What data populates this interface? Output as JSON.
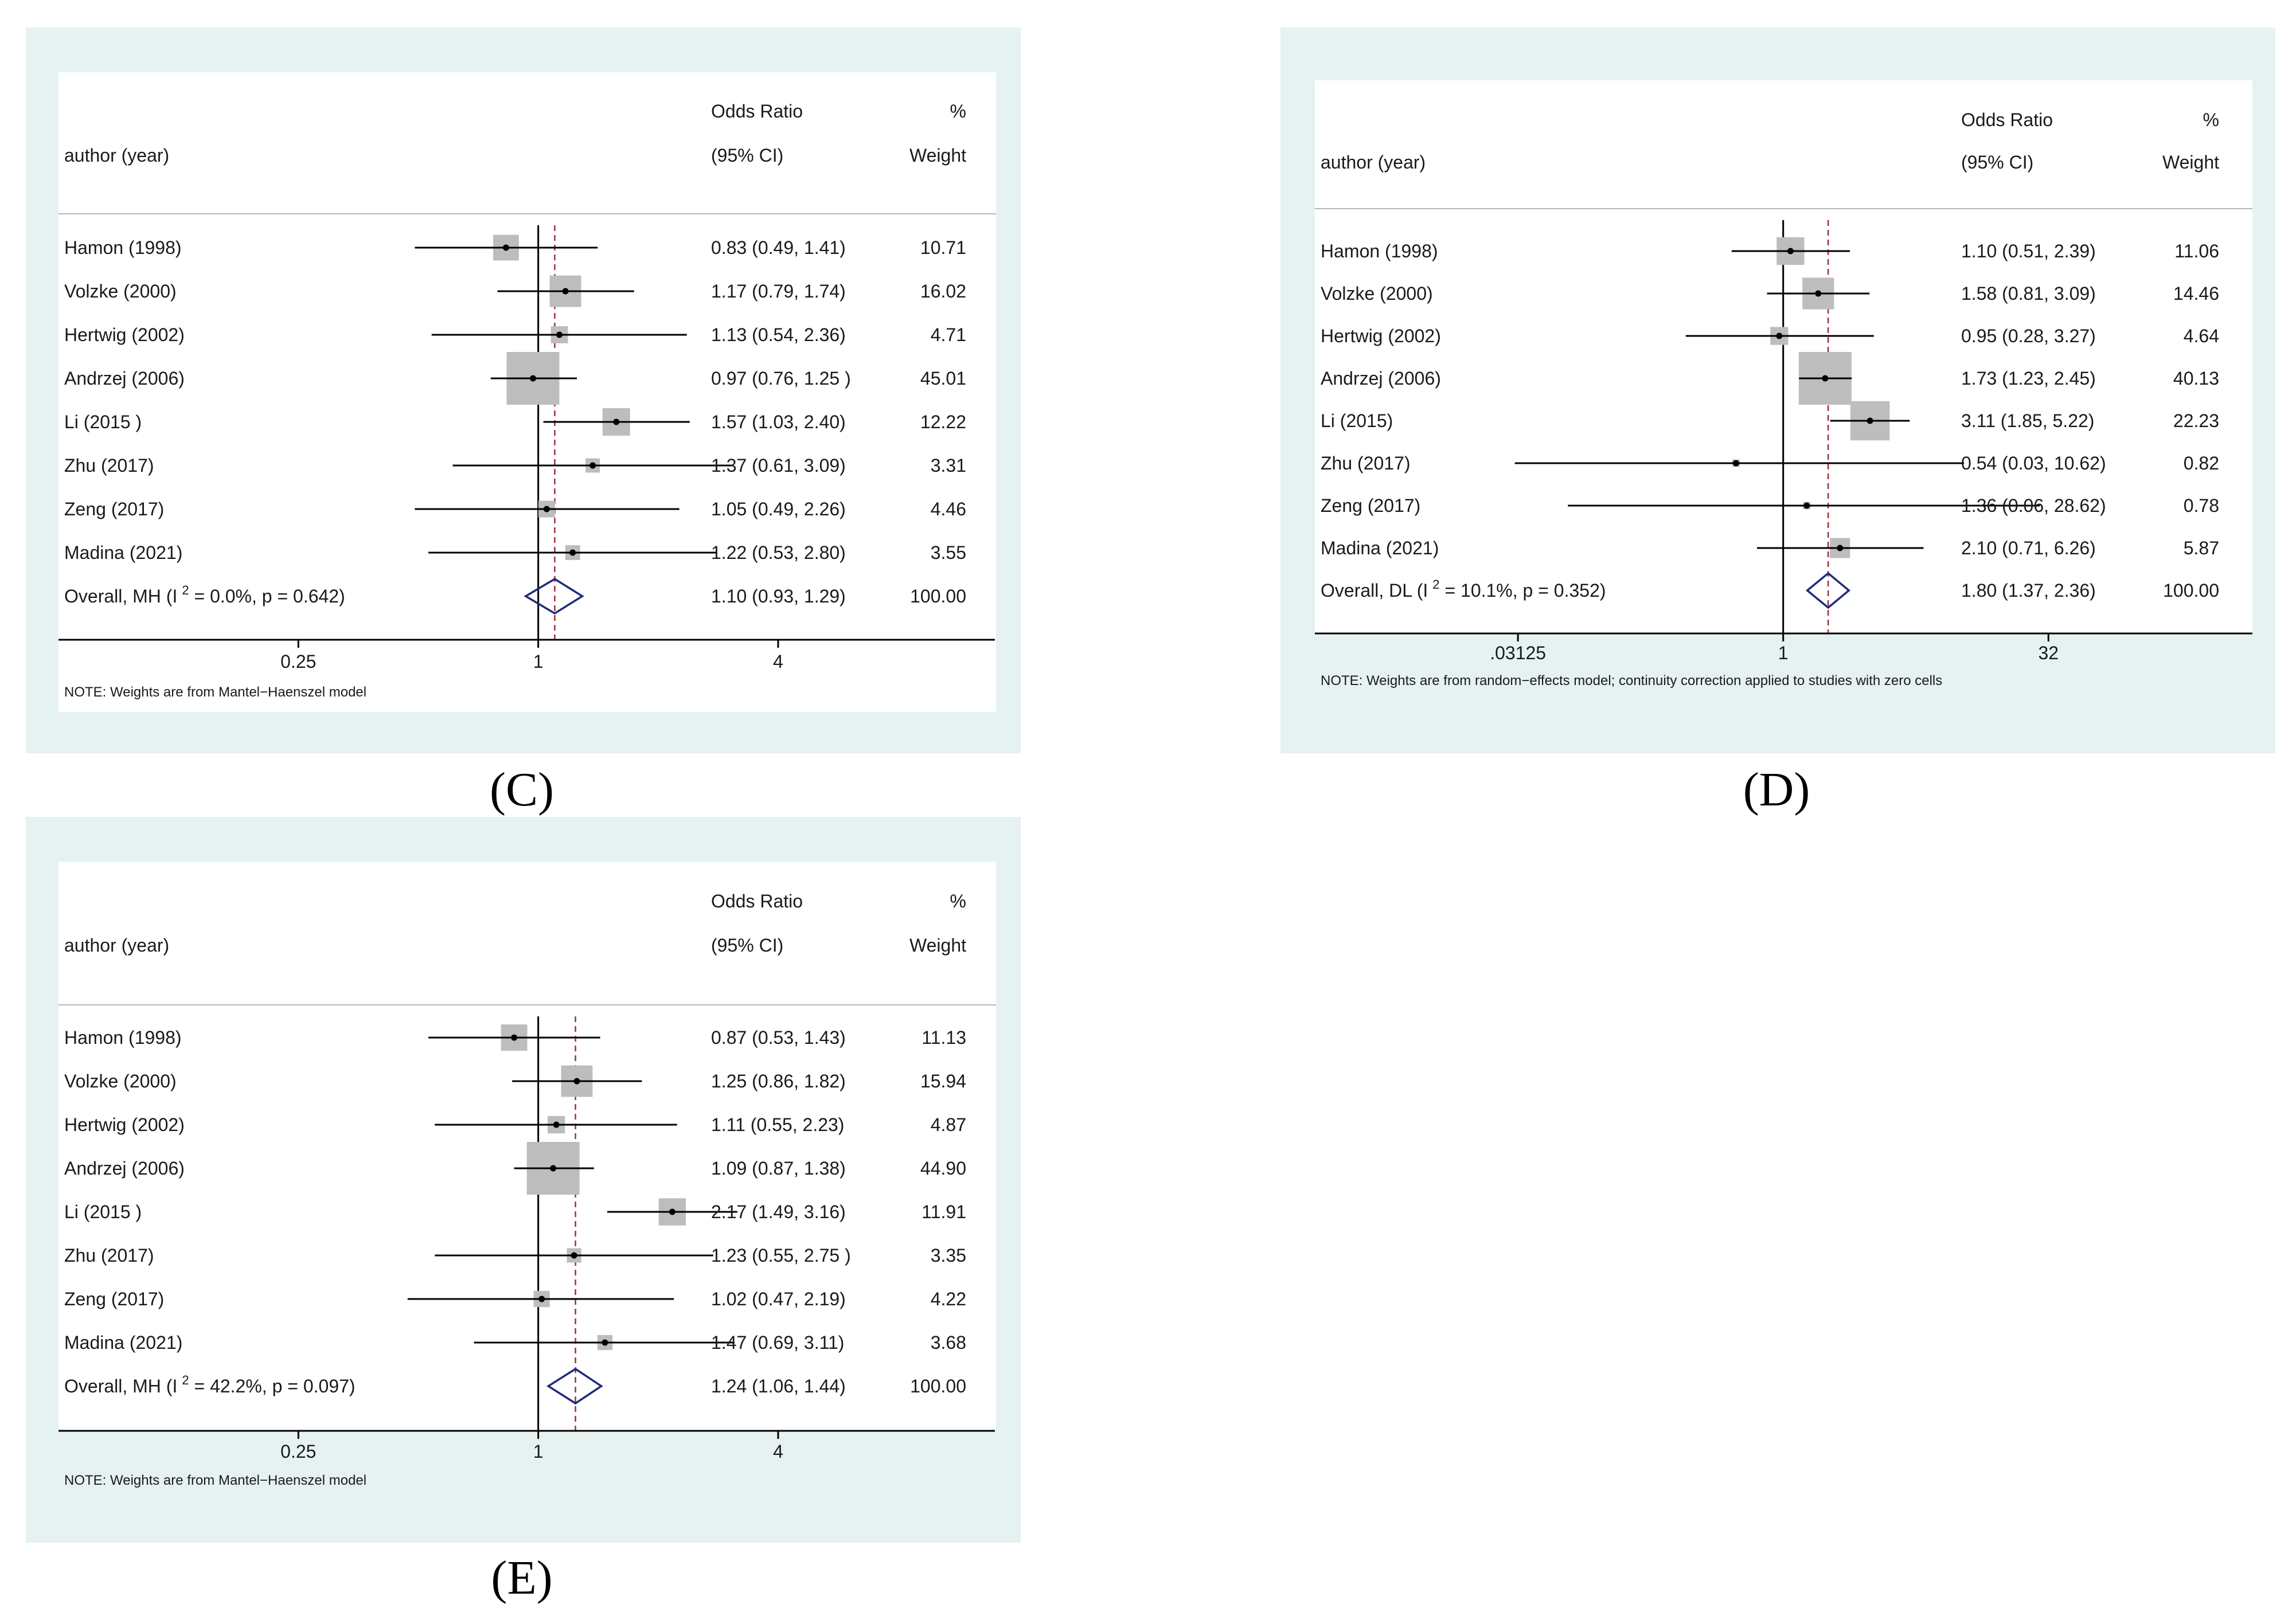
{
  "colors": {
    "panel_bg": "#e6f1f2",
    "plot_bg": "#ffffff",
    "box": "#bdbdbd",
    "diamond": "#1f2a7a",
    "ref_line": "#9e2f3a",
    "line": "#000000"
  },
  "chart_data": [
    {
      "type": "forest",
      "panel_label": "(C)",
      "header": {
        "col1": "author (year)",
        "or_top": "Odds Ratio",
        "or_bottom": "(95% CI)",
        "w_top": "%",
        "w_bottom": "Weight"
      },
      "x_scale": "log2",
      "xlim": [
        0.0625,
        14
      ],
      "ticks": [
        {
          "value": 0.25,
          "label": "0.25"
        },
        {
          "value": 1,
          "label": "1"
        },
        {
          "value": 4,
          "label": "4"
        }
      ],
      "pooled_line": 1.1,
      "studies": [
        {
          "name": "Hamon  (1998)",
          "or": 0.83,
          "lo": 0.49,
          "hi": 1.41,
          "ci_text": "0.83 (0.49, 1.41)",
          "weight": 10.71,
          "weight_text": "10.71"
        },
        {
          "name": "Volzke (2000)",
          "or": 1.17,
          "lo": 0.79,
          "hi": 1.74,
          "ci_text": "1.17 (0.79, 1.74)",
          "weight": 16.02,
          "weight_text": "16.02"
        },
        {
          "name": "Hertwig (2002)",
          "or": 1.13,
          "lo": 0.54,
          "hi": 2.36,
          "ci_text": "1.13 (0.54, 2.36)",
          "weight": 4.71,
          "weight_text": "4.71"
        },
        {
          "name": "Andrzej (2006)",
          "or": 0.97,
          "lo": 0.76,
          "hi": 1.25,
          "ci_text": "0.97 (0.76, 1.25 )",
          "weight": 45.01,
          "weight_text": "45.01"
        },
        {
          "name": "Li (2015 )",
          "or": 1.57,
          "lo": 1.03,
          "hi": 2.4,
          "ci_text": "1.57 (1.03, 2.40)",
          "weight": 12.22,
          "weight_text": "12.22"
        },
        {
          "name": "Zhu (2017)",
          "or": 1.37,
          "lo": 0.61,
          "hi": 3.09,
          "ci_text": "1.37 (0.61, 3.09)",
          "weight": 3.31,
          "weight_text": "3.31"
        },
        {
          "name": "Zeng (2017)",
          "or": 1.05,
          "lo": 0.49,
          "hi": 2.26,
          "ci_text": "1.05 (0.49, 2.26)",
          "weight": 4.46,
          "weight_text": "4.46"
        },
        {
          "name": "Madina (2021)",
          "or": 1.22,
          "lo": 0.53,
          "hi": 2.8,
          "ci_text": "1.22 (0.53, 2.80)",
          "weight": 3.55,
          "weight_text": "3.55"
        }
      ],
      "overall": {
        "label": "Overall, MH (I",
        "sup": "2",
        "stat": " = 0.0%, p = 0.642)",
        "or": 1.1,
        "lo": 0.93,
        "hi": 1.29,
        "ci_text": "1.10 (0.93, 1.29)",
        "weight_text": "100.00"
      },
      "note": "NOTE: Weights are from Mantel−Haenszel model"
    },
    {
      "type": "forest",
      "panel_label": "(D)",
      "header": {
        "col1": "author (year)",
        "or_top": "Odds Ratio",
        "or_bottom": "(95% CI)",
        "w_top": "%",
        "w_bottom": "Weight"
      },
      "x_scale": "log2",
      "xlim": [
        0.0022,
        460
      ],
      "ticks": [
        {
          "value": 0.03125,
          "label": ".03125"
        },
        {
          "value": 1,
          "label": "1"
        },
        {
          "value": 32,
          "label": "32"
        }
      ],
      "pooled_line": 1.8,
      "studies": [
        {
          "name": "Hamon  (1998)",
          "or": 1.1,
          "lo": 0.51,
          "hi": 2.39,
          "ci_text": "1.10 (0.51, 2.39)",
          "weight": 11.06,
          "weight_text": "11.06"
        },
        {
          "name": "Volzke (2000)",
          "or": 1.58,
          "lo": 0.81,
          "hi": 3.09,
          "ci_text": "1.58 (0.81, 3.09)",
          "weight": 14.46,
          "weight_text": "14.46"
        },
        {
          "name": "Hertwig (2002)",
          "or": 0.95,
          "lo": 0.28,
          "hi": 3.27,
          "ci_text": "0.95 (0.28, 3.27)",
          "weight": 4.64,
          "weight_text": "4.64"
        },
        {
          "name": "Andrzej (2006)",
          "or": 1.73,
          "lo": 1.23,
          "hi": 2.45,
          "ci_text": "1.73 (1.23, 2.45)",
          "weight": 40.13,
          "weight_text": "40.13"
        },
        {
          "name": "Li (2015)",
          "or": 3.11,
          "lo": 1.85,
          "hi": 5.22,
          "ci_text": "3.11 (1.85, 5.22)",
          "weight": 22.23,
          "weight_text": "22.23"
        },
        {
          "name": "Zhu (2017)",
          "or": 0.54,
          "lo": 0.03,
          "hi": 10.62,
          "ci_text": "0.54 (0.03, 10.62)",
          "weight": 0.82,
          "weight_text": "0.82"
        },
        {
          "name": "Zeng (2017)",
          "or": 1.36,
          "lo": 0.06,
          "hi": 28.62,
          "ci_text": "1.36 (0.06, 28.62)",
          "weight": 0.78,
          "weight_text": "0.78"
        },
        {
          "name": "Madina (2021)",
          "or": 2.1,
          "lo": 0.71,
          "hi": 6.26,
          "ci_text": "2.10 (0.71, 6.26)",
          "weight": 5.87,
          "weight_text": "5.87"
        }
      ],
      "overall": {
        "label": "Overall, DL (I",
        "sup": "2",
        "stat": " = 10.1%, p = 0.352)",
        "or": 1.8,
        "lo": 1.37,
        "hi": 2.36,
        "ci_text": "1.80 (1.37, 2.36)",
        "weight_text": "100.00"
      },
      "note": "NOTE: Weights are from random−effects model; continuity correction applied to studies with zero cells"
    },
    {
      "type": "forest",
      "panel_label": "(E)",
      "header": {
        "col1": "author (year)",
        "or_top": "Odds Ratio",
        "or_bottom": "(95% CI)",
        "w_top": "%",
        "w_bottom": "Weight"
      },
      "x_scale": "log2",
      "xlim": [
        0.0625,
        14
      ],
      "ticks": [
        {
          "value": 0.25,
          "label": "0.25"
        },
        {
          "value": 1,
          "label": "1"
        },
        {
          "value": 4,
          "label": "4"
        }
      ],
      "pooled_line": 1.24,
      "studies": [
        {
          "name": "Hamon  (1998)",
          "or": 0.87,
          "lo": 0.53,
          "hi": 1.43,
          "ci_text": "0.87 (0.53, 1.43)",
          "weight": 11.13,
          "weight_text": "11.13"
        },
        {
          "name": "Volzke (2000)",
          "or": 1.25,
          "lo": 0.86,
          "hi": 1.82,
          "ci_text": "1.25 (0.86, 1.82)",
          "weight": 15.94,
          "weight_text": "15.94"
        },
        {
          "name": "Hertwig (2002)",
          "or": 1.11,
          "lo": 0.55,
          "hi": 2.23,
          "ci_text": "1.11 (0.55, 2.23)",
          "weight": 4.87,
          "weight_text": "4.87"
        },
        {
          "name": "Andrzej (2006)",
          "or": 1.09,
          "lo": 0.87,
          "hi": 1.38,
          "ci_text": "1.09 (0.87, 1.38)",
          "weight": 44.9,
          "weight_text": "44.90"
        },
        {
          "name": "Li (2015 )",
          "or": 2.17,
          "lo": 1.49,
          "hi": 3.16,
          "ci_text": "2.17 (1.49, 3.16)",
          "weight": 11.91,
          "weight_text": "11.91"
        },
        {
          "name": "Zhu (2017)",
          "or": 1.23,
          "lo": 0.55,
          "hi": 2.75,
          "ci_text": "1.23 (0.55, 2.75 )",
          "weight": 3.35,
          "weight_text": "3.35"
        },
        {
          "name": "Zeng (2017)",
          "or": 1.02,
          "lo": 0.47,
          "hi": 2.19,
          "ci_text": "1.02 (0.47, 2.19)",
          "weight": 4.22,
          "weight_text": "4.22"
        },
        {
          "name": "Madina (2021)",
          "or": 1.47,
          "lo": 0.69,
          "hi": 3.11,
          "ci_text": "1.47 (0.69, 3.11)",
          "weight": 3.68,
          "weight_text": "3.68"
        }
      ],
      "overall": {
        "label": "Overall, MH (I",
        "sup": "2",
        "stat": " = 42.2%, p = 0.097)",
        "or": 1.24,
        "lo": 1.06,
        "hi": 1.44,
        "ci_text": "1.24 (1.06, 1.44)",
        "weight_text": "100.00"
      },
      "note": "NOTE: Weights are from Mantel−Haenszel model"
    }
  ]
}
